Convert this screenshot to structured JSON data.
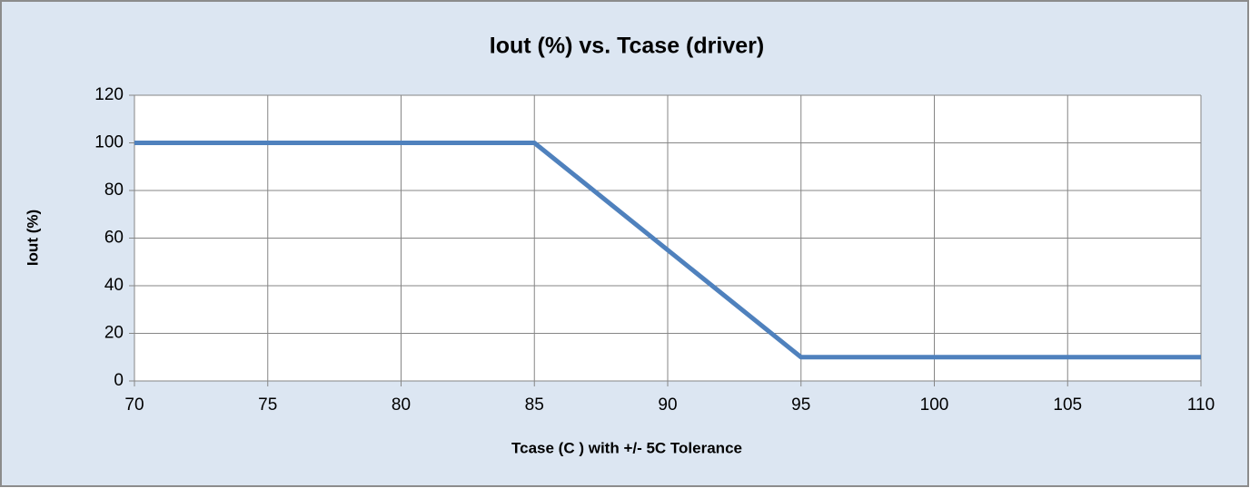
{
  "chart_data": {
    "type": "line",
    "title": "Iout (%) vs. Tcase (driver)",
    "x_label": "Tcase (C ) with +/- 5C Tolerance",
    "y_label": "Iout (%)",
    "x": [
      70,
      85,
      95,
      110
    ],
    "values": [
      100,
      100,
      10,
      10
    ],
    "color": "#4f81bd",
    "xlim": [
      70,
      110
    ],
    "xticks": [
      70,
      75,
      80,
      85,
      90,
      95,
      100,
      105,
      110
    ],
    "ylim": [
      0,
      120
    ],
    "yticks": [
      0,
      20,
      40,
      60,
      80,
      100,
      120
    ],
    "grid": true
  }
}
